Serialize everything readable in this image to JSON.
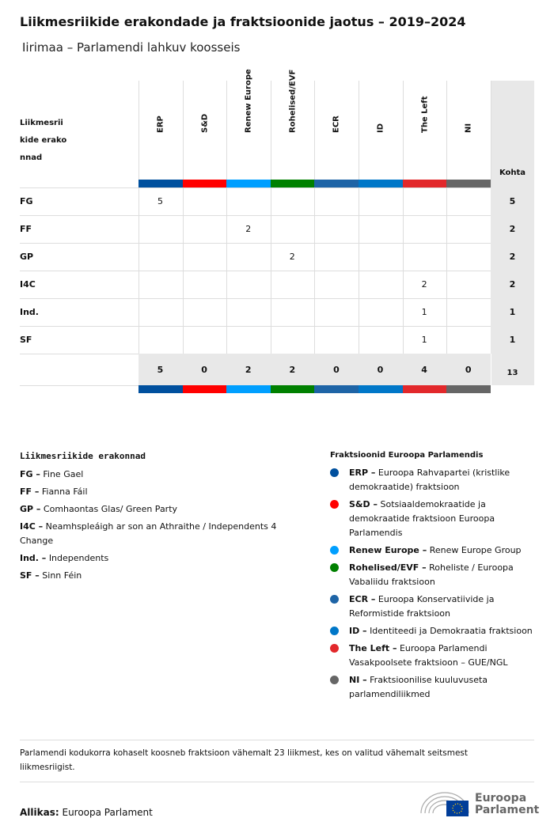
{
  "title": "Liikmesriikide erakondade ja fraktsioonide jaotus – 2019–2024",
  "subtitle": "Iirimaa – Parlamendi lahkuv koosseis",
  "chart_data": {
    "type": "table",
    "row_header": "Liikmesriikide erakonnad",
    "total_header": "Kohta",
    "columns": [
      {
        "name": "ERP",
        "color": "#00509e"
      },
      {
        "name": "S&D",
        "color": "#ff0000"
      },
      {
        "name": "Renew Europe",
        "color": "#009fff"
      },
      {
        "name": "Rohelised/EVF",
        "color": "#008000"
      },
      {
        "name": "ECR",
        "color": "#1e64a6"
      },
      {
        "name": "ID",
        "color": "#0077c8"
      },
      {
        "name": "The Left",
        "color": "#e2282b"
      },
      {
        "name": "NI",
        "color": "#666666"
      }
    ],
    "rows": [
      {
        "party": "FG",
        "values": [
          5,
          null,
          null,
          null,
          null,
          null,
          null,
          null
        ],
        "total": 5
      },
      {
        "party": "FF",
        "values": [
          null,
          null,
          2,
          null,
          null,
          null,
          null,
          null
        ],
        "total": 2
      },
      {
        "party": "GP",
        "values": [
          null,
          null,
          null,
          2,
          null,
          null,
          null,
          null
        ],
        "total": 2
      },
      {
        "party": "I4C",
        "values": [
          null,
          null,
          null,
          null,
          null,
          null,
          2,
          null
        ],
        "total": 2
      },
      {
        "party": "Ind.",
        "values": [
          null,
          null,
          null,
          null,
          null,
          null,
          1,
          null
        ],
        "total": 1
      },
      {
        "party": "SF",
        "values": [
          null,
          null,
          null,
          null,
          null,
          null,
          1,
          null
        ],
        "total": 1
      }
    ],
    "column_totals": [
      5,
      0,
      2,
      2,
      0,
      0,
      4,
      0
    ],
    "grand_total": 13
  },
  "legend_parties": {
    "title": "Liikmesriikide erakonnad",
    "items": [
      {
        "abbr": "FG –",
        "name": "Fine Gael"
      },
      {
        "abbr": "FF –",
        "name": "Fianna Fáil"
      },
      {
        "abbr": "GP –",
        "name": "Comhaontas Glas/ Green Party"
      },
      {
        "abbr": "I4C –",
        "name": "Neamhspleáigh ar son an Athraithe / Independents 4 Change"
      },
      {
        "abbr": "Ind. –",
        "name": "Independents"
      },
      {
        "abbr": "SF –",
        "name": "Sinn Féin"
      }
    ]
  },
  "legend_groups": {
    "title": "Fraktsioonid Euroopa Parlamendis",
    "items": [
      {
        "abbr": "ERP –",
        "name": "Euroopa Rahvapartei (kristlike demokraatide) fraktsioon",
        "color": "#00509e"
      },
      {
        "abbr": "S&D –",
        "name": "Sotsiaaldemokraatide ja demokraatide fraktsioon Euroopa Parlamendis",
        "color": "#ff0000"
      },
      {
        "abbr": "Renew Europe –",
        "name": "Renew Europe Group",
        "color": "#009fff"
      },
      {
        "abbr": "Rohelised/EVF –",
        "name": "Roheliste / Euroopa Vabaliidu fraktsioon",
        "color": "#008000"
      },
      {
        "abbr": "ECR –",
        "name": "Euroopa Konservatiivide ja Reformistide fraktsioon",
        "color": "#1e64a6"
      },
      {
        "abbr": "ID –",
        "name": "Identiteedi ja Demokraatia fraktsioon",
        "color": "#0077c8"
      },
      {
        "abbr": "The Left –",
        "name": "Euroopa Parlamendi Vasakpoolsete fraktsioon – GUE/NGL",
        "color": "#e2282b"
      },
      {
        "abbr": "NI –",
        "name": "Fraktsioonilise kuuluvuseta parlamendiliikmed",
        "color": "#666666"
      }
    ]
  },
  "note": "Parlamendi kodukorra kohaselt koosneb fraktsioon vähemalt 23 liikmest, kes on valitud vähemalt seitsmest liikmesriigist.",
  "source_label": "Allikas:",
  "source": "Euroopa Parlament",
  "logo": {
    "line1": "Euroopa",
    "line2": "Parlament"
  }
}
